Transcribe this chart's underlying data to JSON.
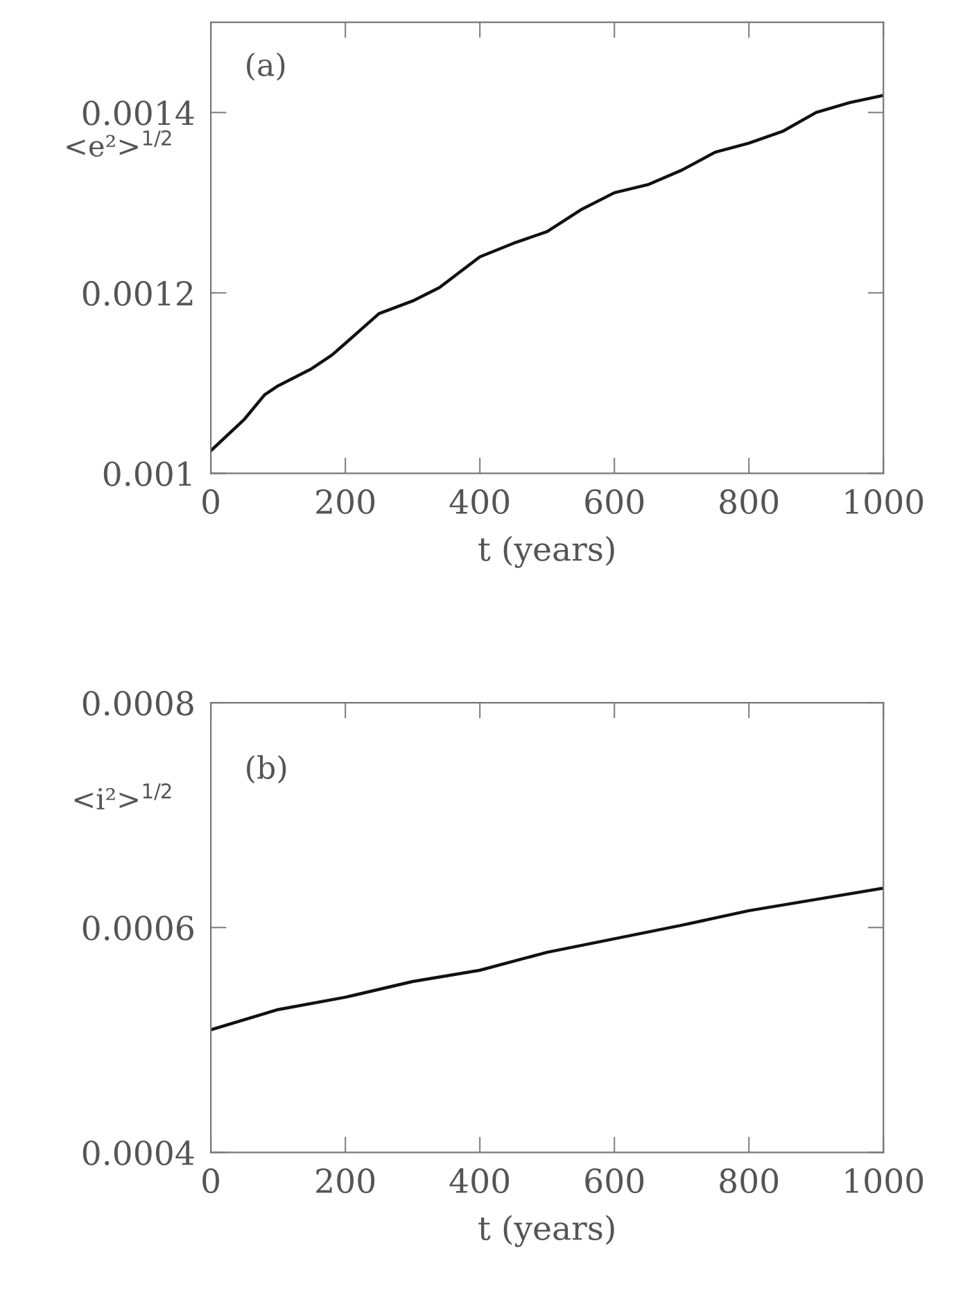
{
  "chart_data": [
    {
      "type": "line",
      "xlabel": "t (years)",
      "ylabel": "<e²>$^{1/2}$",
      "annotations": [
        "(a)"
      ],
      "x": [
        0,
        50,
        80,
        100,
        150,
        180,
        200,
        250,
        300,
        340,
        400,
        450,
        500,
        550,
        600,
        650,
        700,
        750,
        800,
        850,
        900,
        950,
        1000
      ],
      "series": [
        {
          "color": "#111111",
          "values": [
            0.001025,
            0.00106,
            0.001087,
            0.001097,
            0.001116,
            0.001131,
            0.001144,
            0.001177,
            0.001191,
            0.001206,
            0.00124,
            0.001255,
            0.001268,
            0.001292,
            0.001311,
            0.00132,
            0.001336,
            0.001356,
            0.001366,
            0.001379,
            0.0014,
            0.001411,
            0.001419
          ]
        }
      ],
      "xlim": [
        0,
        1000
      ],
      "xticks": [
        0,
        200,
        400,
        600,
        800,
        1000
      ],
      "ylim": [
        0.001,
        0.0015
      ],
      "yticks": [
        0.001,
        0.0012,
        0.0014
      ],
      "grid": false
    },
    {
      "type": "line",
      "xlabel": "t (years)",
      "ylabel": "<i²>$^{1/2}$",
      "annotations": [
        "(b)"
      ],
      "x": [
        0,
        100,
        200,
        300,
        400,
        500,
        600,
        700,
        800,
        900,
        1000
      ],
      "series": [
        {
          "color": "#111111",
          "values": [
            0.000509,
            0.000527,
            0.000538,
            0.000552,
            0.000562,
            0.000578,
            0.00059,
            0.000602,
            0.000615,
            0.000625,
            0.000635
          ]
        }
      ],
      "xlim": [
        0,
        1000
      ],
      "xticks": [
        0,
        200,
        400,
        600,
        800,
        1000
      ],
      "ylim": [
        0.0004,
        0.0008
      ],
      "yticks": [
        0.0004,
        0.0006,
        0.0008
      ],
      "grid": false
    }
  ]
}
